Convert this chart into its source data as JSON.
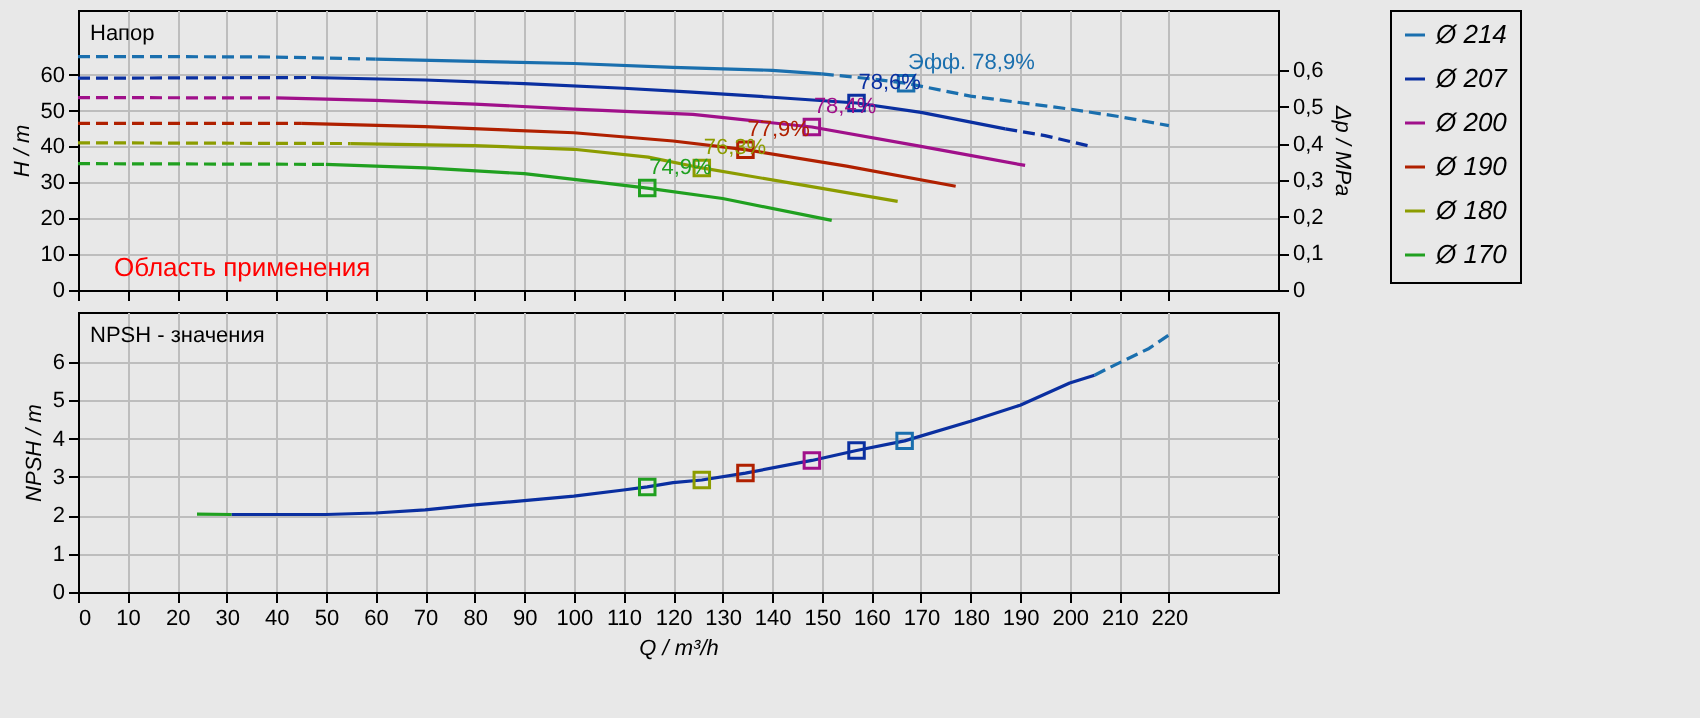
{
  "chart_data": [
    {
      "type": "line",
      "title": "Напор",
      "ylabel": "H / m",
      "y2label": "Δp / MPa",
      "xlim": [
        0,
        242
      ],
      "xticks": [
        0,
        10,
        20,
        30,
        40,
        50,
        60,
        70,
        80,
        90,
        100,
        110,
        120,
        130,
        140,
        150,
        160,
        170,
        180,
        190,
        200,
        210,
        220
      ],
      "ylim": [
        0,
        78
      ],
      "yticks": [
        0,
        10,
        20,
        30,
        40,
        50,
        60
      ],
      "y2lim": [
        0,
        0.765
      ],
      "y2ticks": [
        0,
        {
          "value": 0.1,
          "label": "0,1"
        },
        {
          "value": 0.2,
          "label": "0,2"
        },
        {
          "value": 0.3,
          "label": "0,3"
        },
        {
          "value": 0.4,
          "label": "0,4"
        },
        {
          "value": 0.5,
          "label": "0,5"
        },
        {
          "value": 0.6,
          "label": "0,6"
        }
      ],
      "grid": true,
      "legend": "right",
      "tick_labels": "y",
      "series": [
        {
          "name": "Ø 214",
          "color": "#1a6fae",
          "x": [
            60,
            80,
            100,
            120,
            140,
            150
          ],
          "values": [
            64.3,
            63.7,
            63.1,
            62,
            61.2,
            60.2
          ]
        },
        {
          "name": "Ø 207",
          "color": "#0a2fa0",
          "x": [
            47,
            70,
            90,
            110,
            123,
            140,
            157,
            170,
            187
          ],
          "values": [
            59.2,
            58.5,
            57.5,
            56.2,
            55.2,
            53.7,
            52.1,
            49.5,
            44.9
          ]
        },
        {
          "name": "Ø 200",
          "color": "#a0108a",
          "x": [
            40,
            60,
            80,
            100,
            124,
            148,
            170,
            191
          ],
          "values": [
            53.5,
            52.8,
            51.8,
            50.4,
            48.9,
            45.4,
            40,
            34.7
          ]
        },
        {
          "name": "Ø 190",
          "color": "#b02000",
          "x": [
            45,
            70,
            100,
            120,
            134.6,
            155,
            177
          ],
          "values": [
            46.4,
            45.5,
            43.8,
            41.5,
            39.1,
            34.5,
            28.9
          ]
        },
        {
          "name": "Ø 180",
          "color": "#8c9c00",
          "x": [
            55,
            80,
            100,
            115,
            125.8,
            145,
            165.3
          ],
          "values": [
            40.8,
            40.2,
            39.2,
            37,
            34,
            29.5,
            24.7
          ]
        },
        {
          "name": "Ø 170",
          "color": "#20a020",
          "x": [
            50,
            70,
            90,
            100,
            114.8,
            130,
            152
          ],
          "values": [
            35,
            34,
            32.4,
            30.8,
            28.4,
            25.5,
            19.4
          ]
        },
        {
          "color": "#1a6fae",
          "line_style": "dashed",
          "x": [
            0,
            20,
            40,
            60
          ],
          "values": [
            65,
            65,
            64.9,
            64.3
          ]
        },
        {
          "color": "#1a6fae",
          "line_style": "dashed",
          "x": [
            150,
            160,
            167,
            180,
            200,
            210,
            220
          ],
          "values": [
            60.2,
            58.8,
            57.6,
            54,
            50.4,
            48.3,
            45.8
          ]
        },
        {
          "color": "#0a2fa0",
          "line_style": "dashed",
          "x": [
            0,
            47
          ],
          "values": [
            59,
            59.2
          ]
        },
        {
          "color": "#0a2fa0",
          "line_style": "dashed",
          "x": [
            187,
            195,
            204
          ],
          "values": [
            44.9,
            43,
            40.1
          ]
        },
        {
          "color": "#a0108a",
          "line_style": "dashed",
          "x": [
            0,
            40
          ],
          "values": [
            53.6,
            53.5
          ]
        },
        {
          "color": "#b02000",
          "line_style": "dashed",
          "x": [
            0,
            45
          ],
          "values": [
            46.4,
            46.4
          ]
        },
        {
          "color": "#8c9c00",
          "line_style": "dashed",
          "x": [
            0,
            55
          ],
          "values": [
            41,
            40.8
          ]
        },
        {
          "color": "#20a020",
          "line_style": "dashed",
          "x": [
            0,
            50
          ],
          "values": [
            35.2,
            35
          ]
        },
        {
          "type": "scatter",
          "marker": "square",
          "x": [
            114.8,
            125.8,
            134.6,
            148,
            157,
            167
          ],
          "values": [
            28.4,
            34,
            39.1,
            45.4,
            52.1,
            57.6
          ],
          "colors": [
            "#20a020",
            "#8c9c00",
            "#b02000",
            "#a0108a",
            "#0a2fa0",
            "#1a6fae"
          ]
        }
      ],
      "annotations": [
        {
          "text": "74,9%",
          "x": 114.8,
          "y": 28.4
        },
        {
          "text": "76,3%",
          "x": 125.8,
          "y": 34
        },
        {
          "text": "77,9%",
          "x": 134.6,
          "y": 39.1
        },
        {
          "text": "78,4%",
          "x": 148,
          "y": 45.4
        },
        {
          "text": "78,6%",
          "x": 157,
          "y": 52.1
        },
        {
          "text": "Эфф.  78,9%",
          "x": 167,
          "y": 57.6
        },
        "Область применения"
      ]
    },
    {
      "type": "line",
      "title": "NPSH - значения",
      "xlabel": "Q / m³/h",
      "ylabel": "NPSH / m",
      "xlim": [
        0,
        242
      ],
      "xticks": [
        0,
        10,
        20,
        30,
        40,
        50,
        60,
        70,
        80,
        90,
        100,
        110,
        120,
        130,
        140,
        150,
        160,
        170,
        180,
        190,
        200,
        210,
        220
      ],
      "ylim": [
        0,
        7.3
      ],
      "yticks": [
        0,
        1,
        2,
        3,
        4,
        5,
        6
      ],
      "grid": true,
      "series": [
        {
          "color": "#20a020",
          "x": [
            24,
            31
          ],
          "values": [
            2.03,
            2.02
          ]
        },
        {
          "color": "#0a2fa0",
          "x": [
            31,
            50,
            60,
            70,
            80,
            90,
            100,
            110,
            114.8,
            120,
            125.8,
            134.6,
            148,
            157,
            166.7,
            180,
            190,
            200,
            205
          ],
          "values": [
            2.02,
            2.02,
            2.06,
            2.14,
            2.27,
            2.38,
            2.5,
            2.66,
            2.74,
            2.85,
            2.92,
            3.1,
            3.43,
            3.69,
            3.94,
            4.45,
            4.87,
            5.45,
            5.65
          ]
        },
        {
          "color": "#1a6fae",
          "line_style": "dashed",
          "x": [
            205,
            208,
            216,
            220
          ],
          "values": [
            5.65,
            5.85,
            6.35,
            6.7
          ]
        },
        {
          "type": "scatter",
          "marker": "square",
          "x": [
            114.8,
            125.8,
            134.6,
            148,
            157,
            166.7
          ],
          "values": [
            2.74,
            2.92,
            3.1,
            3.43,
            3.69,
            3.94
          ],
          "colors": [
            "#20a020",
            "#8c9c00",
            "#b02000",
            "#a0108a",
            "#0a2fa0",
            "#1a6fae"
          ]
        }
      ]
    }
  ]
}
